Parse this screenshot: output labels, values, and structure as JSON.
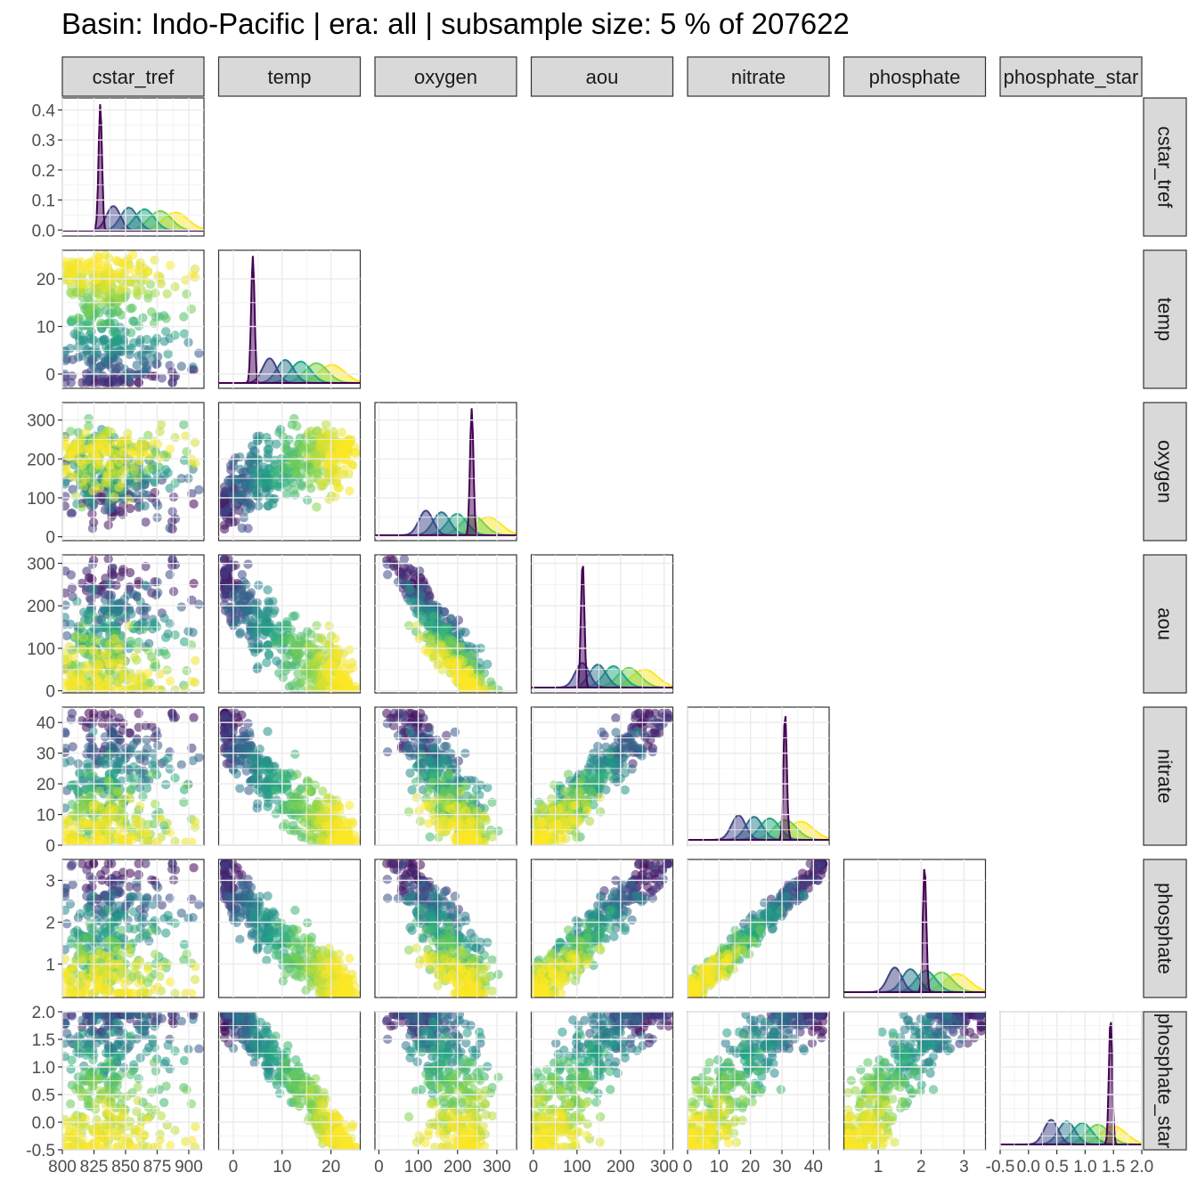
{
  "title": "Basin: Indo-Pacific | era: all | subsample size: 5 % of 207622",
  "chart_data": {
    "type": "scatter",
    "title": "Basin: Indo-Pacific | era: all | subsample size: 5 % of 207622",
    "layout": "pairs matrix (lower triangle scatter, diagonal density)",
    "variables": [
      "cstar_tref",
      "temp",
      "oxygen",
      "aou",
      "nitrate",
      "phosphate",
      "phosphate_star"
    ],
    "strip_labels_top": [
      "cstar_tref",
      "temp",
      "oxygen",
      "aou",
      "nitrate",
      "phosphate",
      "phosphate_star"
    ],
    "strip_labels_right": [
      "cstar_tref",
      "temp",
      "oxygen",
      "aou",
      "nitrate",
      "phosphate",
      "phosphate_star"
    ],
    "x_axes": [
      {
        "variable": "cstar_tref",
        "range": [
          800,
          912
        ],
        "ticks": [
          800,
          825,
          850,
          875,
          900
        ],
        "tick_labels": [
          "800",
          "825",
          "850",
          "875",
          "900"
        ]
      },
      {
        "variable": "temp",
        "range": [
          -3,
          26
        ],
        "ticks": [
          0,
          10,
          20
        ],
        "tick_labels": [
          "0",
          "10",
          "20"
        ]
      },
      {
        "variable": "oxygen",
        "range": [
          -10,
          350
        ],
        "ticks": [
          0,
          100,
          200,
          300
        ],
        "tick_labels": [
          "0",
          "100",
          "200",
          "300"
        ]
      },
      {
        "variable": "aou",
        "range": [
          -5,
          320
        ],
        "ticks": [
          0,
          100,
          200,
          300
        ],
        "tick_labels": [
          "0",
          "100",
          "200",
          "300"
        ]
      },
      {
        "variable": "nitrate",
        "range": [
          0,
          45
        ],
        "ticks": [
          0,
          10,
          20,
          30,
          40
        ],
        "tick_labels": [
          "0",
          "10",
          "20",
          "30",
          "40"
        ]
      },
      {
        "variable": "phosphate",
        "range": [
          0.2,
          3.5
        ],
        "ticks": [
          1,
          2,
          3
        ],
        "tick_labels": [
          "1",
          "2",
          "3"
        ]
      },
      {
        "variable": "phosphate_star",
        "range": [
          -0.5,
          2.0
        ],
        "ticks": [
          -0.5,
          0.0,
          0.5,
          1.0,
          1.5,
          2.0
        ],
        "tick_labels": [
          "-0.5",
          "0.0",
          "0.5",
          "1.0",
          "1.5",
          "2.0"
        ]
      }
    ],
    "y_axes": [
      {
        "variable": "cstar_tref",
        "note": "density",
        "range": [
          -0.02,
          0.44
        ],
        "ticks": [
          0.0,
          0.1,
          0.2,
          0.3,
          0.4
        ],
        "tick_labels": [
          "0.0",
          "0.1",
          "0.2",
          "0.3",
          "0.4"
        ]
      },
      {
        "variable": "temp",
        "range": [
          -3,
          26
        ],
        "ticks": [
          0,
          10,
          20
        ],
        "tick_labels": [
          "0",
          "10",
          "20"
        ]
      },
      {
        "variable": "oxygen",
        "range": [
          -10,
          345
        ],
        "ticks": [
          0,
          100,
          200,
          300
        ],
        "tick_labels": [
          "0",
          "100",
          "200",
          "300"
        ]
      },
      {
        "variable": "aou",
        "range": [
          -5,
          320
        ],
        "ticks": [
          0,
          100,
          200,
          300
        ],
        "tick_labels": [
          "0",
          "100",
          "200",
          "300"
        ]
      },
      {
        "variable": "nitrate",
        "range": [
          0,
          45
        ],
        "ticks": [
          0,
          10,
          20,
          30,
          40
        ],
        "tick_labels": [
          "0",
          "10",
          "20",
          "30",
          "40"
        ]
      },
      {
        "variable": "phosphate",
        "range": [
          0.2,
          3.5
        ],
        "ticks": [
          1,
          2,
          3
        ],
        "tick_labels": [
          "1",
          "2",
          "3"
        ]
      },
      {
        "variable": "phosphate_star",
        "range": [
          -0.5,
          2.0
        ],
        "ticks": [
          -0.5,
          0.0,
          0.5,
          1.0,
          1.5,
          2.0
        ],
        "tick_labels": [
          "-0.5",
          "0.0",
          "0.5",
          "1.0",
          "1.5",
          "2.0"
        ]
      }
    ],
    "color_scale": {
      "palette": "viridis",
      "colors": [
        "#440154",
        "#414487",
        "#2A788E",
        "#22A884",
        "#7AD151",
        "#FDE725"
      ],
      "legend": "none"
    },
    "density_peaks": [
      {
        "variable": "cstar_tref",
        "peak_x": 830,
        "peak_y": 0.42
      },
      {
        "variable": "temp",
        "peak_x": 4,
        "peak_density": "max"
      },
      {
        "variable": "oxygen",
        "peak_x": 236,
        "peak_density": "max"
      },
      {
        "variable": "aou",
        "peak_x": 113,
        "peak_density": "max"
      },
      {
        "variable": "nitrate",
        "peak_x": 31,
        "peak_density": "max"
      },
      {
        "variable": "phosphate",
        "peak_x": 2.08,
        "peak_density": "max"
      },
      {
        "variable": "phosphate_star",
        "peak_x": 1.45,
        "peak_density": "max"
      }
    ],
    "grid": true
  }
}
